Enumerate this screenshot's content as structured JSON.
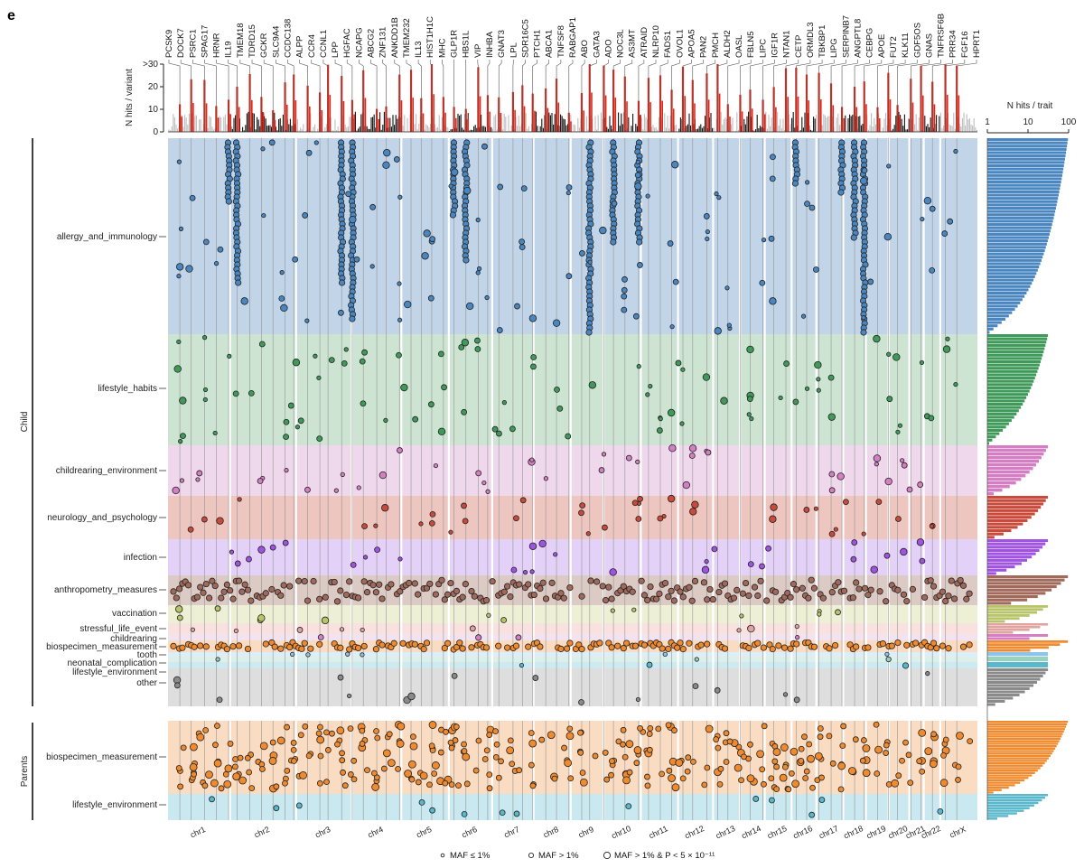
{
  "panel_letter": "e",
  "chart_data": {
    "type": "scatter",
    "title": "",
    "top_track": {
      "ylabel": "N hits / variant",
      "yticks": [
        "0",
        "10",
        "20",
        ">30"
      ],
      "ylim": [
        0,
        30
      ]
    },
    "side_track": {
      "xlabel": "N hits / trait",
      "xticks": [
        "1",
        "10",
        "100"
      ],
      "scale": "log",
      "xlim": [
        1,
        100
      ]
    },
    "chromosomes": [
      "chr1",
      "chr2",
      "chr3",
      "chr4",
      "chr5",
      "chr6",
      "chr7",
      "chr8",
      "chr9",
      "chr10",
      "chr11",
      "chr12",
      "chr13",
      "chr14",
      "chr15",
      "chr16",
      "chr17",
      "chr18",
      "chr19",
      "chr20",
      "chr21",
      "chr22",
      "chrX"
    ],
    "genes": [
      "PCSK9",
      "DOCK7",
      "PSRC1",
      "SPAG17",
      "HRNR",
      "IL19",
      "TMEM18",
      "TDRD15",
      "GCKR",
      "SLC9A4",
      "CCDC138",
      "ALPP",
      "CCR4",
      "CCNL1",
      "LPP",
      "HGFAC",
      "NCAPG",
      "ABCG2",
      "ZNF131",
      "ANKDD1B",
      "TMEM232",
      "IL13",
      "HIST1H1C",
      "MHC",
      "GLP1R",
      "HBS1L",
      "VIP",
      "INHBA",
      "GNAT3",
      "LPL",
      "SDR16C5",
      "PTCH1",
      "ABCA1",
      "TNFSF8",
      "RABGAP1",
      "ABO",
      "GATA3",
      "ADO",
      "NOC3L",
      "AS3MT",
      "ATRAID",
      "NLRP10",
      "FADS1",
      "OVOL1",
      "APOA5",
      "PAN2",
      "PMCH",
      "ALDH2",
      "OASL",
      "FBLN5",
      "LIPC",
      "IGF1R",
      "NTAN1",
      "CETP",
      "ORMDL3",
      "TBKBP1",
      "LIPG",
      "SERPINB7",
      "ANGPTL8",
      "CEBPG",
      "APOE",
      "FUT2",
      "KLK11",
      "GDF5OS",
      "GNAS",
      "TNFRSF6B",
      "PRR34",
      "FGF16",
      "HPRT1"
    ],
    "groups": [
      {
        "name": "Child",
        "categories": [
          {
            "name": "allergy_and_immunology",
            "color": "#4a86c0",
            "band": "#c2d5e8",
            "n_traits": 60
          },
          {
            "name": "lifestyle_habits",
            "color": "#3f9a5a",
            "band": "#cde4d2",
            "n_traits": 34
          },
          {
            "name": "childrearing_environment",
            "color": "#d47fc4",
            "band": "#efd8ec",
            "n_traits": 14
          },
          {
            "name": "neurology_and_psychology",
            "color": "#c94a3a",
            "band": "#eec6c0",
            "n_traits": 13
          },
          {
            "name": "infection",
            "color": "#a052e0",
            "band": "#e3d1f7",
            "n_traits": 11
          },
          {
            "name": "anthropometry_measures",
            "color": "#a0695a",
            "band": "#dccbc5",
            "n_traits": 9
          },
          {
            "name": "vaccination",
            "color": "#b9c46a",
            "band": "#edf0d4",
            "n_traits": 6
          },
          {
            "name": "stressful_life_event",
            "color": "#e0a3a0",
            "band": "#f8e1df",
            "n_traits": 4
          },
          {
            "name": "childrearing",
            "color": "#d47fc4",
            "band": "#f3e3f0",
            "n_traits": 2
          },
          {
            "name": "biospecimen_measurement",
            "color": "#f08a2e",
            "band": "#fadcc2",
            "n_traits": 4
          },
          {
            "name": "tooth",
            "color": "#8fc4ea",
            "band": "#dbeef9",
            "n_traits": 1
          },
          {
            "name": "neonatal_complication",
            "color": "#9ad0c0",
            "band": "#dcefe8",
            "n_traits": 1
          },
          {
            "name": "lifestyle_environment",
            "color": "#5ab8cc",
            "band": "#cdeaf1",
            "n_traits": 1
          },
          {
            "name": "other",
            "color": "#8a8a8a",
            "band": "#dedede",
            "n_traits": 12
          }
        ]
      },
      {
        "name": "Parents",
        "categories": [
          {
            "name": "biospecimen_measurement",
            "color": "#f08a2e",
            "band": "#fadcc2",
            "n_traits": 30
          },
          {
            "name": "lifestyle_environment",
            "color": "#5ab8cc",
            "band": "#c9e8ef",
            "n_traits": 10
          }
        ]
      }
    ],
    "legend": [
      {
        "label": "MAF ≤ 1%",
        "size": "small"
      },
      {
        "label": "MAF > 1%",
        "size": "medium"
      },
      {
        "label": "MAF > 1% & P < 5 × 10⁻¹¹",
        "size": "large"
      }
    ],
    "colors": {
      "highlight": "#e0281a",
      "bar_black": "#111111",
      "bar_grey": "#bdbdbd"
    }
  }
}
